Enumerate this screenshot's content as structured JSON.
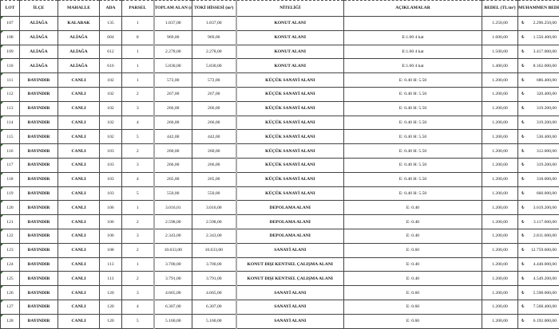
{
  "columns": [
    "LOT",
    "İLÇE",
    "MAHALLE",
    "ADA",
    "PARSEL",
    "TOPLAM ALAN (m²)",
    "TOKİ HİSSESİ (m²)",
    "NİTELİĞİ",
    "AÇIKLAMALAR",
    "BEDEL (TL/m²)",
    "MUHAMMEN BEDEL (TL)"
  ],
  "currency": "₺",
  "rows": [
    [
      "107",
      "ALİAĞA",
      "KALABAK",
      "135",
      "1",
      "1.837,00",
      "1.837,00",
      "KONUT ALANI",
      "",
      "1.250,00",
      "2.296.250,00"
    ],
    [
      "108",
      "ALİAĞA",
      "ALİAĞA",
      "604",
      "8",
      "969,00",
      "969,00",
      "KONUT ALANI",
      "E:1.00 4 kat",
      "1.600,00",
      "1.550.400,00"
    ],
    [
      "109",
      "ALİAĞA",
      "ALİAĞA",
      "612",
      "1",
      "2.278,00",
      "2.278,00",
      "KONUT ALANI",
      "E:1.00 4 kat",
      "1.500,00",
      "3.417.000,00"
    ],
    [
      "110",
      "ALİAĞA",
      "ALİAĞA",
      "616",
      "1",
      "5.830,00",
      "5.830,00",
      "KONUT ALANI",
      "E:1.00 4 kat",
      "1.400,00",
      "8.162.000,00"
    ],
    [
      "111",
      "BAYINDIR",
      "CANLI",
      "102",
      "1",
      "572,00",
      "572,00",
      "KÜÇÜK SANAYİ ALANI",
      "E: 0.40 H: 5.50",
      "1.200,00",
      "686.400,00"
    ],
    [
      "112",
      "BAYINDIR",
      "CANLI",
      "102",
      "2",
      "267,00",
      "267,00",
      "KÜÇÜK SANAYİ ALANI",
      "E: 0.40 H: 5.50",
      "1.200,00",
      "320.400,00"
    ],
    [
      "113",
      "BAYINDIR",
      "CANLI",
      "102",
      "3",
      "266,00",
      "266,00",
      "KÜÇÜK SANAYİ ALANI",
      "E: 0.40 H: 5.50",
      "1.200,00",
      "319.200,00"
    ],
    [
      "114",
      "BAYINDIR",
      "CANLI",
      "102",
      "4",
      "266,00",
      "266,00",
      "KÜÇÜK SANAYİ ALANI",
      "E: 0.40 H: 5.50",
      "1.200,00",
      "319.200,00"
    ],
    [
      "115",
      "BAYINDIR",
      "CANLI",
      "102",
      "5",
      "442,00",
      "442,00",
      "KÜÇÜK SANAYİ ALANI",
      "E: 0.40 H: 5.50",
      "1.200,00",
      "530.400,00"
    ],
    [
      "116",
      "BAYINDIR",
      "CANLI",
      "103",
      "2",
      "260,00",
      "260,00",
      "KÜÇÜK SANAYİ ALANI",
      "E: 0.40 H: 5.50",
      "1.200,00",
      "312.000,00"
    ],
    [
      "117",
      "BAYINDIR",
      "CANLI",
      "103",
      "3",
      "266,00",
      "266,00",
      "KÜÇÜK SANAYİ ALANI",
      "E: 0.40 H: 5.50",
      "1.200,00",
      "319.200,00"
    ],
    [
      "118",
      "BAYINDIR",
      "CANLI",
      "103",
      "4",
      "265,00",
      "265,00",
      "KÜÇÜK SANAYİ ALANI",
      "E: 0.40 H: 5.50",
      "1.200,00",
      "318.000,00"
    ],
    [
      "119",
      "BAYINDIR",
      "CANLI",
      "103",
      "5",
      "550,00",
      "550,00",
      "KÜÇÜK SANAYİ ALANI",
      "E: 0.40 H: 5.50",
      "1.200,00",
      "660.000,00"
    ],
    [
      "120",
      "BAYINDIR",
      "CANLI",
      "106",
      "1",
      "3.016,01",
      "3.016,00",
      "DEPOLAMA ALANI",
      "E: 0.40",
      "1.200,00",
      "3.619.200,00"
    ],
    [
      "121",
      "BAYINDIR",
      "CANLI",
      "106",
      "2",
      "2.598,00",
      "2.598,00",
      "DEPOLAMA ALANI",
      "E: 0.40",
      "1.200,00",
      "3.117.600,00"
    ],
    [
      "122",
      "BAYINDIR",
      "CANLI",
      "106",
      "3",
      "2.343,00",
      "2.343,00",
      "DEPOLAMA ALANI",
      "E: 0.40",
      "1.200,00",
      "2.811.600,00"
    ],
    [
      "123",
      "BAYINDIR",
      "CANLI",
      "108",
      "2",
      "10.633,00",
      "10.633,00",
      "SANAYİ ALANI",
      "E: 0.60",
      "1.200,00",
      "12.759.600,00"
    ],
    [
      "124",
      "BAYINDIR",
      "CANLI",
      "113",
      "1",
      "3.700,00",
      "3.700,00",
      "KONUT DIŞI KENTSEL ÇALIŞMA ALANI",
      "E: 0.40",
      "1.200,00",
      "4.440.000,00"
    ],
    [
      "125",
      "BAYINDIR",
      "CANLI",
      "113",
      "2",
      "3.791,00",
      "3.791,00",
      "KONUT DIŞI KENTSEL ÇALIŞMA ALANI",
      "E: 0.40",
      "1.200,00",
      "4.549.200,00"
    ],
    [
      "126",
      "BAYINDIR",
      "CANLI",
      "120",
      "3",
      "4.665,00",
      "4.665,00",
      "SANAYİ ALANI",
      "E: 0.60",
      "1.200,00",
      "5.598.000,00"
    ],
    [
      "127",
      "BAYINDIR",
      "CANLI",
      "120",
      "4",
      "6.307,00",
      "6.307,00",
      "SANAYİ ALANI",
      "E: 0.60",
      "1.200,00",
      "7.568.400,00"
    ],
    [
      "128",
      "BAYINDIR",
      "CANLI",
      "120",
      "5",
      "5.160,00",
      "5.160,00",
      "SANAYİ ALANI",
      "E: 0.60",
      "1.200,00",
      "6.192.000,00"
    ]
  ]
}
